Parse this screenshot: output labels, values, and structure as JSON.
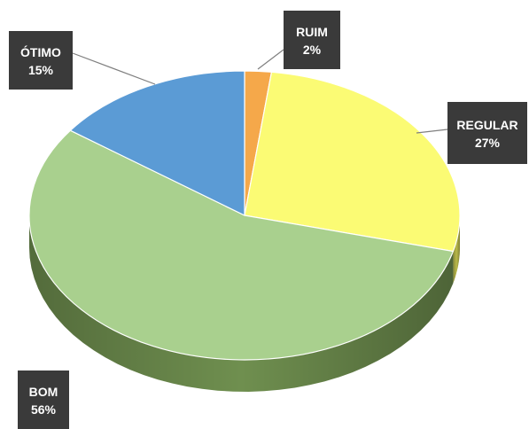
{
  "chart_data": {
    "type": "pie",
    "title": "",
    "slices": [
      {
        "label": "RUIM",
        "percent_label": "2%",
        "value": 2,
        "color": "#f5a84a"
      },
      {
        "label": "REGULAR",
        "percent_label": "27%",
        "value": 27,
        "color": "#fbfb74"
      },
      {
        "label": "BOM",
        "percent_label": "56%",
        "value": 56,
        "color": "#a9d08e"
      },
      {
        "label": "ÓTIMO",
        "percent_label": "15%",
        "value": 15,
        "color": "#5b9bd5"
      }
    ],
    "side_colors": {
      "RUIM": "#b8782e",
      "REGULAR": "#b8b84a",
      "BOM": "#6f8f4f",
      "ÓTIMO": "#3b6fa0"
    },
    "style": "3d-pie",
    "legend": "none",
    "data_labels": "callout"
  }
}
